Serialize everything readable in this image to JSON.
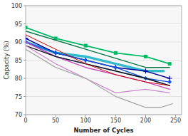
{
  "chart_data": {
    "type": "line",
    "xlabel": "Number of Cycles",
    "ylabel": "Capacity (%)",
    "xlim": [
      0,
      260
    ],
    "ylim": [
      70,
      100
    ],
    "xticks": [
      0,
      50,
      100,
      150,
      200,
      250
    ],
    "yticks": [
      70,
      75,
      80,
      85,
      90,
      95,
      100
    ],
    "grid": true,
    "series": [
      {
        "x": [
          0,
          50,
          100,
          150,
          200,
          240
        ],
        "values": [
          94,
          91,
          89,
          87,
          86,
          84
        ],
        "color": "#00bb66",
        "marker": "square"
      },
      {
        "x": [
          0,
          100,
          200,
          240
        ],
        "values": [
          93,
          88,
          83,
          83
        ],
        "color": "#007744"
      },
      {
        "x": [
          0,
          50,
          100,
          150,
          200,
          230
        ],
        "values": [
          90,
          87,
          86,
          84,
          82,
          82
        ],
        "color": "#33bbcc"
      },
      {
        "x": [
          0,
          50,
          100,
          150,
          200,
          240
        ],
        "values": [
          91,
          87,
          85,
          83,
          82,
          80
        ],
        "color": "#000099",
        "marker": "plus"
      },
      {
        "x": [
          0,
          50,
          100,
          150,
          200,
          240
        ],
        "values": [
          90,
          87,
          85,
          83,
          80,
          79
        ],
        "color": "#1155dd",
        "marker": "diamond"
      },
      {
        "x": [
          0,
          50,
          100,
          150,
          200,
          240
        ],
        "values": [
          90,
          86,
          84,
          82,
          80,
          78
        ],
        "color": "#3377ff"
      },
      {
        "x": [
          0,
          50,
          100,
          150,
          200,
          240
        ],
        "values": [
          90,
          86,
          83,
          81,
          79,
          77
        ],
        "color": "#cc44bb"
      },
      {
        "x": [
          0,
          50,
          100,
          150,
          200,
          240
        ],
        "values": [
          89,
          86,
          84,
          82,
          80,
          78
        ],
        "color": "#111111"
      },
      {
        "x": [
          0,
          50,
          100,
          150,
          200,
          240
        ],
        "values": [
          92,
          88,
          84,
          81,
          79,
          78
        ],
        "color": "#cc0000"
      },
      {
        "x": [
          0,
          50,
          100,
          150,
          200,
          240
        ],
        "values": [
          89,
          84,
          80,
          76,
          77,
          76
        ],
        "color": "#cc88cc"
      },
      {
        "x": [
          0,
          50,
          100,
          150,
          200,
          225,
          245
        ],
        "values": [
          88,
          83,
          80,
          75,
          72,
          72,
          73
        ],
        "color": "#aaaaaa"
      }
    ]
  }
}
